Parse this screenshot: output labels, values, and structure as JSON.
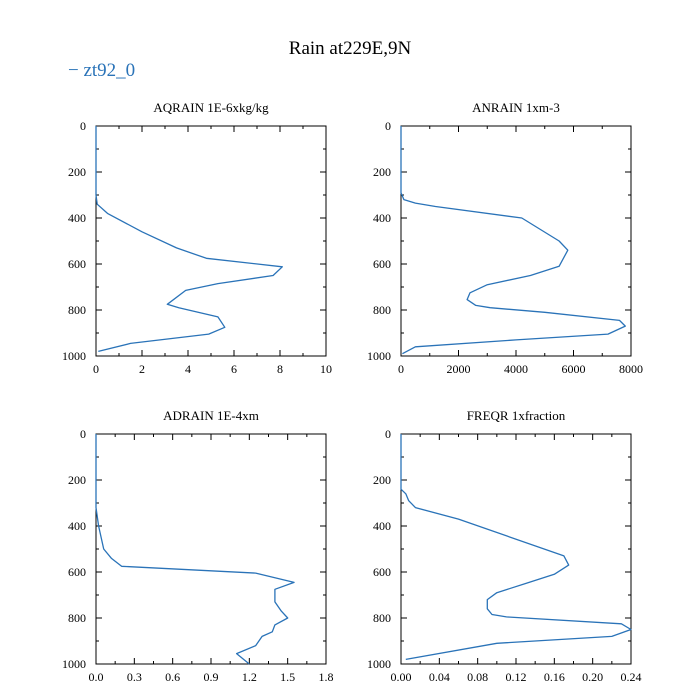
{
  "figure": {
    "title": "Rain at229E,9N",
    "legend": "− zt92_0",
    "series_color": "#2a73b8"
  },
  "chart_data": [
    {
      "type": "line",
      "title": "AQRAIN  1E-6xkg/kg",
      "xlabel": "",
      "ylabel": "",
      "xlim": [
        0,
        10
      ],
      "ylim": [
        1000,
        0
      ],
      "xticks": [
        "0",
        "2",
        "4",
        "6",
        "8",
        "10"
      ],
      "yticks": [
        "0",
        "200",
        "400",
        "600",
        "800",
        "1000"
      ],
      "series": [
        {
          "name": "zt92_0",
          "x": [
            0,
            0,
            0.05,
            0.5,
            2,
            3.5,
            4.8,
            8.1,
            7.7,
            5.3,
            3.9,
            3.1,
            3.6,
            5.3,
            5.6,
            4.9,
            1.5,
            0.1
          ],
          "y": [
            0,
            300,
            340,
            380,
            460,
            530,
            575,
            612,
            650,
            685,
            715,
            775,
            790,
            830,
            875,
            905,
            945,
            980
          ]
        }
      ]
    },
    {
      "type": "line",
      "title": "ANRAIN  1xm-3",
      "xlabel": "",
      "ylabel": "",
      "xlim": [
        0,
        8000
      ],
      "ylim": [
        1000,
        0
      ],
      "xticks": [
        "0",
        "2000",
        "4000",
        "6000",
        "8000"
      ],
      "yticks": [
        "0",
        "200",
        "400",
        "600",
        "800",
        "1000"
      ],
      "series": [
        {
          "name": "zt92_0",
          "x": [
            0,
            0,
            100,
            500,
            1200,
            4200,
            5500,
            5800,
            5500,
            4500,
            3000,
            2400,
            2300,
            2600,
            3100,
            5000,
            7600,
            7800,
            7200,
            4000,
            500,
            50
          ],
          "y": [
            0,
            290,
            320,
            335,
            350,
            400,
            500,
            540,
            610,
            650,
            690,
            725,
            755,
            780,
            790,
            810,
            845,
            870,
            905,
            930,
            960,
            990
          ]
        }
      ]
    },
    {
      "type": "line",
      "title": "ADRAIN  1E-4xm",
      "xlabel": "",
      "ylabel": "",
      "xlim": [
        0,
        1.8
      ],
      "ylim": [
        1000,
        0
      ],
      "xticks": [
        "0.0",
        "0.3",
        "0.6",
        "0.9",
        "1.2",
        "1.5",
        "1.8"
      ],
      "yticks": [
        "0",
        "200",
        "400",
        "600",
        "800",
        "1000"
      ],
      "series": [
        {
          "name": "zt92_0",
          "x": [
            0,
            0,
            0.02,
            0.06,
            0.12,
            0.2,
            1.25,
            1.55,
            1.4,
            1.4,
            1.45,
            1.5,
            1.4,
            1.38,
            1.3,
            1.25,
            1.1,
            1.2
          ],
          "y": [
            0,
            320,
            400,
            500,
            540,
            575,
            605,
            645,
            675,
            730,
            770,
            800,
            830,
            860,
            880,
            920,
            955,
            1000
          ]
        }
      ]
    },
    {
      "type": "line",
      "title": "FREQR  1xfraction",
      "xlabel": "",
      "ylabel": "",
      "xlim": [
        0,
        0.24
      ],
      "ylim": [
        1000,
        0
      ],
      "xticks": [
        "0.00",
        "0.04",
        "0.08",
        "0.12",
        "0.16",
        "0.20",
        "0.24"
      ],
      "yticks": [
        "0",
        "200",
        "400",
        "600",
        "800",
        "1000"
      ],
      "series": [
        {
          "name": "zt92_0",
          "x": [
            0,
            0,
            0.005,
            0.008,
            0.015,
            0.06,
            0.17,
            0.175,
            0.16,
            0.13,
            0.1,
            0.09,
            0.09,
            0.095,
            0.11,
            0.23,
            0.24,
            0.22,
            0.1,
            0.005
          ],
          "y": [
            0,
            240,
            260,
            290,
            320,
            370,
            530,
            570,
            610,
            650,
            690,
            720,
            760,
            785,
            795,
            825,
            850,
            880,
            910,
            980
          ]
        }
      ]
    }
  ]
}
